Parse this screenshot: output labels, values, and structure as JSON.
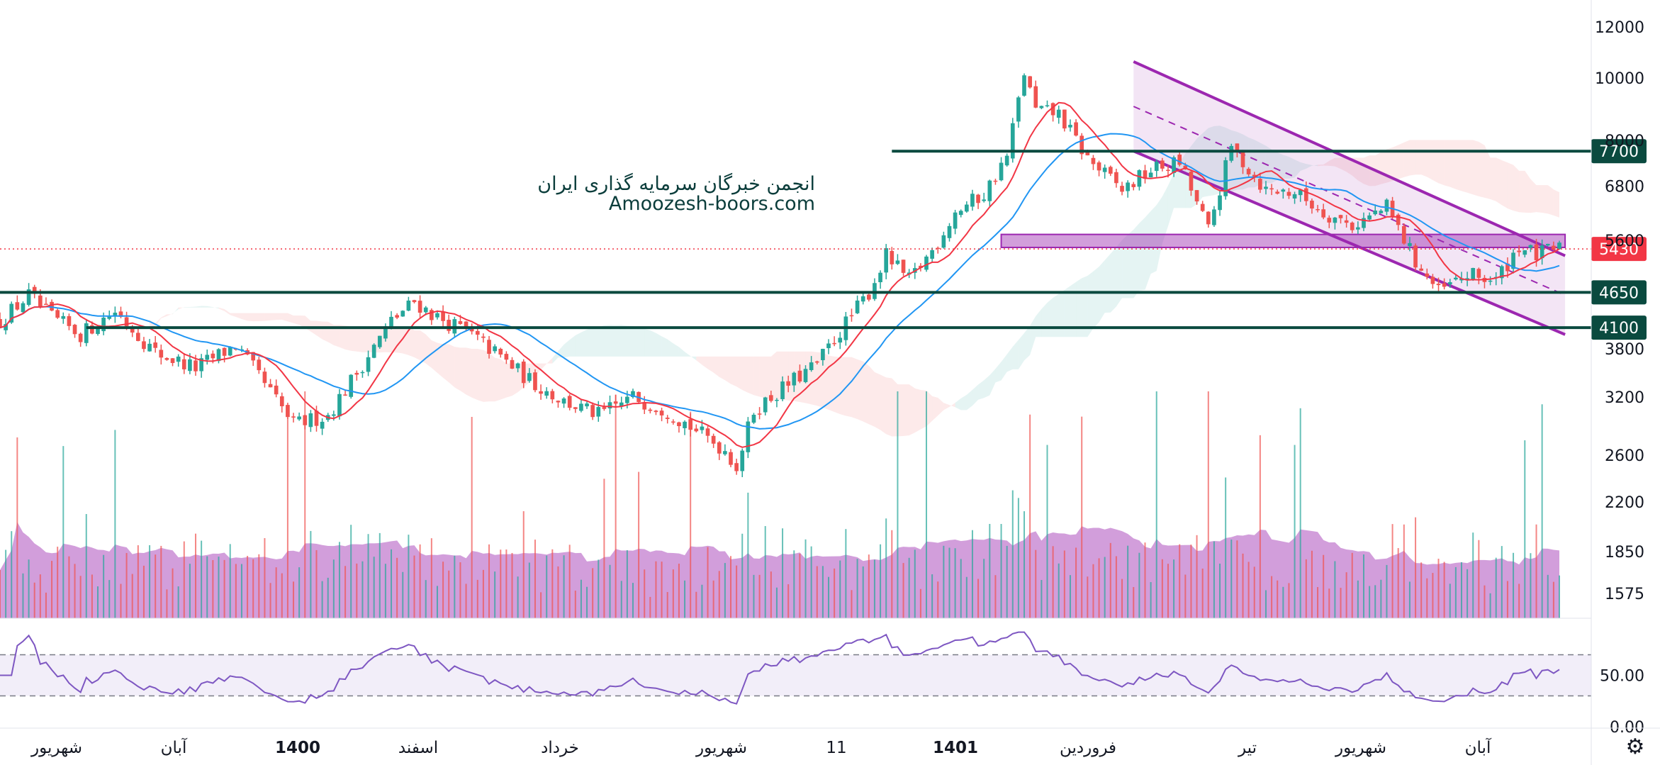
{
  "chart_data": {
    "type": "candlestick",
    "price_axis": {
      "scale": "log",
      "ticks": [
        12000,
        10000,
        8000,
        6800,
        5600,
        3800,
        3200,
        2600,
        2200,
        1850,
        1575
      ],
      "tick_labels": [
        "12000",
        "10000",
        "8000",
        "6800",
        "5600",
        "3800",
        "3200",
        "2600",
        "2200",
        "1850",
        "1575"
      ]
    },
    "time_axis": {
      "labels": [
        {
          "text": "شهریور",
          "bold": false
        },
        {
          "text": "آبان",
          "bold": false
        },
        {
          "text": "1400",
          "bold": true
        },
        {
          "text": "اسفند",
          "bold": false
        },
        {
          "text": "خرداد",
          "bold": false
        },
        {
          "text": "شهریور",
          "bold": false
        },
        {
          "text": "11",
          "bold": false
        },
        {
          "text": "1401",
          "bold": true
        },
        {
          "text": "فروردین",
          "bold": false
        },
        {
          "text": "تیر",
          "bold": false
        },
        {
          "text": "شهریور",
          "bold": false
        },
        {
          "text": "آبان",
          "bold": false
        }
      ]
    },
    "price_path": [
      [
        0,
        4200
      ],
      [
        5,
        4600
      ],
      [
        9,
        4250
      ],
      [
        14,
        4000
      ],
      [
        20,
        4350
      ],
      [
        27,
        3750
      ],
      [
        34,
        3550
      ],
      [
        41,
        3850
      ],
      [
        46,
        3350
      ],
      [
        51,
        2900
      ],
      [
        57,
        3000
      ],
      [
        63,
        3600
      ],
      [
        68,
        4200
      ],
      [
        72,
        4500
      ],
      [
        76,
        4250
      ],
      [
        81,
        4050
      ],
      [
        86,
        3750
      ],
      [
        92,
        3400
      ],
      [
        98,
        3150
      ],
      [
        104,
        3000
      ],
      [
        110,
        3200
      ],
      [
        116,
        3050
      ],
      [
        122,
        2800
      ],
      [
        126,
        2650
      ],
      [
        128,
        2500
      ],
      [
        131,
        3050
      ],
      [
        137,
        3350
      ],
      [
        142,
        3600
      ],
      [
        146,
        4050
      ],
      [
        151,
        4650
      ],
      [
        154,
        5300
      ],
      [
        158,
        4850
      ],
      [
        162,
        5400
      ],
      [
        166,
        6200
      ],
      [
        171,
        6600
      ],
      [
        175,
        7550
      ],
      [
        178,
        10200
      ],
      [
        180,
        8900
      ],
      [
        184,
        8800
      ],
      [
        189,
        7500
      ],
      [
        195,
        6700
      ],
      [
        200,
        7200
      ],
      [
        205,
        7400
      ],
      [
        210,
        5800
      ],
      [
        214,
        7800
      ],
      [
        220,
        6700
      ],
      [
        225,
        6650
      ],
      [
        230,
        6200
      ],
      [
        235,
        5900
      ],
      [
        241,
        6300
      ],
      [
        246,
        5200
      ],
      [
        250,
        4650
      ],
      [
        255,
        4950
      ],
      [
        260,
        4850
      ],
      [
        264,
        5500
      ],
      [
        267,
        5300
      ],
      [
        270,
        5430
      ]
    ],
    "horizontal_levels": [
      {
        "value": 7700,
        "label": "7700",
        "color": "#0a4a3f"
      },
      {
        "value": 4650,
        "label": "4650",
        "color": "#0a4a3f"
      },
      {
        "value": 4100,
        "label": "4100",
        "color": "#0a4a3f"
      }
    ],
    "last_price": {
      "value": 5430,
      "label": "5430",
      "color": "#f23645"
    },
    "support_zone": {
      "low": 5460,
      "high": 5720,
      "from": 174,
      "to": 272,
      "color": "#9c27b0"
    },
    "channel": {
      "upper": [
        [
          197,
          10600
        ],
        [
          272,
          5300
        ]
      ],
      "lower": [
        [
          197,
          7700
        ],
        [
          272,
          4000
        ]
      ],
      "color": "#9c27b0"
    },
    "watermark": {
      "line1": "انجمن خبرگان سرمایه گذاری ایران",
      "line2": "Amoozesh-boors.com"
    },
    "volume": {
      "max_value": 100
    },
    "rsi": {
      "range": [
        0,
        100
      ],
      "levels": [
        70,
        30
      ],
      "tick_labels": [
        "50.00",
        "0.00"
      ],
      "tick_values": [
        50,
        0
      ]
    },
    "colors": {
      "up": "#26a69a",
      "down": "#ef5350",
      "ma_fast": "#f23645",
      "ma_slow": "#2196f3",
      "rsi_line": "#7e57c2",
      "volume_ma": "#9c27b0"
    }
  },
  "ui": {
    "settings_icon": "gear-icon"
  }
}
